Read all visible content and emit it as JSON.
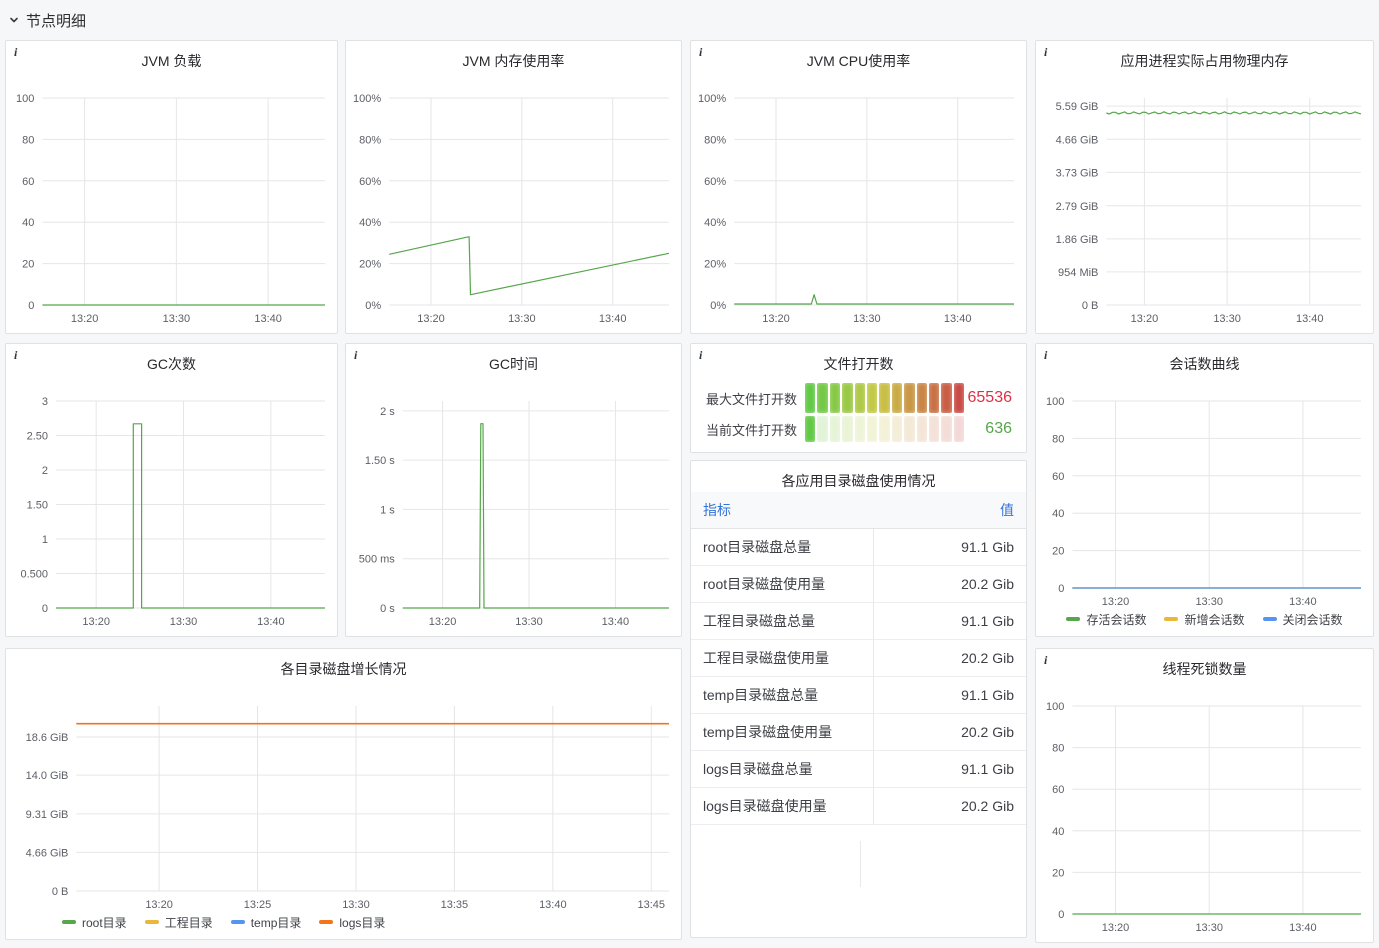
{
  "section": {
    "title": "节点明细"
  },
  "colors": {
    "green": "#56A64B",
    "yellow": "#EAB839",
    "blue": "#5794F2",
    "orange": "#F2751B",
    "red_value": "#E02F44",
    "green_value": "#56A64B",
    "link_blue": "#3274D9"
  },
  "panels": {
    "jvm_load": {
      "title": "JVM 负载",
      "chart_data": {
        "type": "line",
        "x_min": 15.4,
        "x_max": 46.2,
        "y_max": 100,
        "x_ticks": [
          {
            "v": 20,
            "label": "13:20"
          },
          {
            "v": 30,
            "label": "13:30"
          },
          {
            "v": 40,
            "label": "13:40"
          }
        ],
        "y_ticks": [
          {
            "v": 100,
            "label": "100"
          },
          {
            "v": 80,
            "label": "80"
          },
          {
            "v": 60,
            "label": "60"
          },
          {
            "v": 40,
            "label": "40"
          },
          {
            "v": 20,
            "label": "20"
          },
          {
            "v": 0,
            "label": "0"
          }
        ],
        "series": [
          {
            "color": "#56A64B",
            "points": [
              [
                15.4,
                0
              ],
              [
                46.2,
                0
              ]
            ]
          }
        ]
      }
    },
    "jvm_mem": {
      "title": "JVM 内存使用率",
      "chart_data": {
        "type": "line",
        "x_min": 15.4,
        "x_max": 46.2,
        "y_max": 100,
        "x_ticks": [
          {
            "v": 20,
            "label": "13:20"
          },
          {
            "v": 30,
            "label": "13:30"
          },
          {
            "v": 40,
            "label": "13:40"
          }
        ],
        "y_ticks": [
          {
            "v": 100,
            "label": "100%"
          },
          {
            "v": 80,
            "label": "80%"
          },
          {
            "v": 60,
            "label": "60%"
          },
          {
            "v": 40,
            "label": "40%"
          },
          {
            "v": 20,
            "label": "20%"
          },
          {
            "v": 0,
            "label": "0%"
          }
        ],
        "series": [
          {
            "color": "#56A64B",
            "points": [
              [
                15.4,
                24.5
              ],
              [
                24.2,
                33
              ],
              [
                24.35,
                5
              ],
              [
                46.2,
                25
              ]
            ]
          }
        ]
      }
    },
    "jvm_cpu": {
      "title": "JVM CPU使用率",
      "chart_data": {
        "type": "line",
        "x_min": 15.4,
        "x_max": 46.2,
        "y_max": 100,
        "x_ticks": [
          {
            "v": 20,
            "label": "13:20"
          },
          {
            "v": 30,
            "label": "13:30"
          },
          {
            "v": 40,
            "label": "13:40"
          }
        ],
        "y_ticks": [
          {
            "v": 100,
            "label": "100%"
          },
          {
            "v": 80,
            "label": "80%"
          },
          {
            "v": 60,
            "label": "60%"
          },
          {
            "v": 40,
            "label": "40%"
          },
          {
            "v": 20,
            "label": "20%"
          },
          {
            "v": 0,
            "label": "0%"
          }
        ],
        "series": [
          {
            "color": "#56A64B",
            "points": [
              [
                15.4,
                0.5
              ],
              [
                23.9,
                0.5
              ],
              [
                24.2,
                5
              ],
              [
                24.5,
                0.5
              ],
              [
                46.2,
                0.5
              ]
            ]
          }
        ]
      }
    },
    "phys_mem": {
      "title": "应用进程实际占用物理内存",
      "chart_data": {
        "type": "line",
        "x_min": 15.4,
        "x_max": 46.2,
        "y_max": 5.82,
        "x_ticks": [
          {
            "v": 20,
            "label": "13:20"
          },
          {
            "v": 30,
            "label": "13:30"
          },
          {
            "v": 40,
            "label": "13:40"
          }
        ],
        "y_ticks": [
          {
            "v": 5.59,
            "label": "5.59 GiB"
          },
          {
            "v": 4.66,
            "label": "4.66 GiB"
          },
          {
            "v": 3.73,
            "label": "3.73 GiB"
          },
          {
            "v": 2.79,
            "label": "2.79 GiB"
          },
          {
            "v": 1.86,
            "label": "1.86 GiB"
          },
          {
            "v": 0.931,
            "label": "954 MiB"
          },
          {
            "v": 0,
            "label": "0 B"
          }
        ],
        "series": [
          {
            "color": "#56A64B",
            "ripple": 1.1,
            "points": [
              [
                15.4,
                5.4
              ],
              [
                46.2,
                5.4
              ]
            ]
          }
        ]
      }
    },
    "gc_count": {
      "title": "GC次数",
      "chart_data": {
        "type": "line",
        "x_min": 15.4,
        "x_max": 46.2,
        "y_max": 3,
        "x_ticks": [
          {
            "v": 20,
            "label": "13:20"
          },
          {
            "v": 30,
            "label": "13:30"
          },
          {
            "v": 40,
            "label": "13:40"
          }
        ],
        "y_ticks": [
          {
            "v": 3,
            "label": "3"
          },
          {
            "v": 2.5,
            "label": "2.50"
          },
          {
            "v": 2,
            "label": "2"
          },
          {
            "v": 1.5,
            "label": "1.50"
          },
          {
            "v": 1,
            "label": "1"
          },
          {
            "v": 0.5,
            "label": "0.500"
          },
          {
            "v": 0,
            "label": "0"
          }
        ],
        "series": [
          {
            "color": "#56A64B",
            "points": [
              [
                15.4,
                0
              ],
              [
                24.25,
                0
              ],
              [
                24.25,
                2.67
              ],
              [
                25.2,
                2.67
              ],
              [
                25.2,
                0
              ],
              [
                46.2,
                0
              ]
            ]
          }
        ]
      }
    },
    "gc_time": {
      "title": "GC时间",
      "chart_data": {
        "type": "line",
        "x_min": 15.4,
        "x_max": 46.2,
        "y_max": 2.1,
        "x_ticks": [
          {
            "v": 20,
            "label": "13:20"
          },
          {
            "v": 30,
            "label": "13:30"
          },
          {
            "v": 40,
            "label": "13:40"
          }
        ],
        "y_ticks": [
          {
            "v": 2,
            "label": "2 s"
          },
          {
            "v": 1.5,
            "label": "1.50 s"
          },
          {
            "v": 1,
            "label": "1 s"
          },
          {
            "v": 0.5,
            "label": "500 ms"
          },
          {
            "v": 0,
            "label": "0 s"
          }
        ],
        "series": [
          {
            "color": "#56A64B",
            "points": [
              [
                15.4,
                0
              ],
              [
                24.3,
                0
              ],
              [
                24.42,
                1.87
              ],
              [
                24.68,
                1.87
              ],
              [
                24.8,
                0
              ],
              [
                46.2,
                0
              ]
            ]
          }
        ]
      }
    },
    "file_open": {
      "title": "文件打开数",
      "gauge": {
        "cells": 13,
        "rows": [
          {
            "label": "最大文件打开数",
            "value": "65536",
            "value_color": "#E02F44",
            "lit": 13
          },
          {
            "label": "当前文件打开数",
            "value": "636",
            "value_color": "#56A64B",
            "lit": 1
          }
        ]
      }
    },
    "sessions": {
      "title": "会话数曲线",
      "chart_data": {
        "type": "line",
        "x_min": 15.4,
        "x_max": 46.2,
        "y_max": 100,
        "x_ticks": [
          {
            "v": 20,
            "label": "13:20"
          },
          {
            "v": 30,
            "label": "13:30"
          },
          {
            "v": 40,
            "label": "13:40"
          }
        ],
        "y_ticks": [
          {
            "v": 100,
            "label": "100"
          },
          {
            "v": 80,
            "label": "80"
          },
          {
            "v": 60,
            "label": "60"
          },
          {
            "v": 40,
            "label": "40"
          },
          {
            "v": 20,
            "label": "20"
          },
          {
            "v": 0,
            "label": "0"
          }
        ],
        "series": [
          {
            "name": "存活会话数",
            "color": "#56A64B",
            "points": [
              [
                15.4,
                0
              ],
              [
                46.2,
                0
              ]
            ]
          },
          {
            "name": "新增会话数",
            "color": "#EAB839",
            "points": [
              [
                15.4,
                0
              ],
              [
                46.2,
                0
              ]
            ]
          },
          {
            "name": "关闭会话数",
            "color": "#5794F2",
            "points": [
              [
                15.4,
                0
              ],
              [
                46.2,
                0
              ]
            ]
          }
        ]
      }
    },
    "dir_table": {
      "title": "各应用目录磁盘使用情况",
      "columns": [
        "指标",
        "值"
      ],
      "rows": [
        [
          "root目录磁盘总量",
          "91.1 Gib"
        ],
        [
          "root目录磁盘使用量",
          "20.2 Gib"
        ],
        [
          "工程目录磁盘总量",
          "91.1 Gib"
        ],
        [
          "工程目录磁盘使用量",
          "20.2 Gib"
        ],
        [
          "temp目录磁盘总量",
          "91.1 Gib"
        ],
        [
          "temp目录磁盘使用量",
          "20.2 Gib"
        ],
        [
          "logs目录磁盘总量",
          "91.1 Gib"
        ],
        [
          "logs目录磁盘使用量",
          "20.2 Gib"
        ]
      ]
    },
    "disk_growth": {
      "title": "各目录磁盘增长情况",
      "chart_data": {
        "type": "line",
        "x_min": 15.8,
        "x_max": 45.9,
        "y_max": 22.34,
        "x_ticks": [
          {
            "v": 20,
            "label": "13:20"
          },
          {
            "v": 25,
            "label": "13:25"
          },
          {
            "v": 30,
            "label": "13:30"
          },
          {
            "v": 35,
            "label": "13:35"
          },
          {
            "v": 40,
            "label": "13:40"
          },
          {
            "v": 45,
            "label": "13:45"
          }
        ],
        "y_ticks": [
          {
            "v": 18.6,
            "label": "18.6 GiB"
          },
          {
            "v": 14.0,
            "label": "14.0 GiB"
          },
          {
            "v": 9.31,
            "label": "9.31 GiB"
          },
          {
            "v": 4.66,
            "label": "4.66 GiB"
          },
          {
            "v": 0,
            "label": "0 B"
          }
        ],
        "series": [
          {
            "name": "root目录",
            "color": "#56A64B",
            "points": [
              [
                15.8,
                20.2
              ],
              [
                45.9,
                20.2
              ]
            ]
          },
          {
            "name": "工程目录",
            "color": "#EAB839",
            "points": [
              [
                15.8,
                20.2
              ],
              [
                45.9,
                20.2
              ]
            ]
          },
          {
            "name": "temp目录",
            "color": "#5794F2",
            "points": [
              [
                15.8,
                20.2
              ],
              [
                45.9,
                20.2
              ]
            ]
          },
          {
            "name": "logs目录",
            "color": "#F2751B",
            "width": 1.6,
            "points": [
              [
                15.8,
                20.2
              ],
              [
                45.9,
                20.2
              ]
            ]
          }
        ]
      }
    },
    "deadlocks": {
      "title": "线程死锁数量",
      "chart_data": {
        "type": "line",
        "x_min": 15.4,
        "x_max": 46.2,
        "y_max": 100,
        "x_ticks": [
          {
            "v": 20,
            "label": "13:20"
          },
          {
            "v": 30,
            "label": "13:30"
          },
          {
            "v": 40,
            "label": "13:40"
          }
        ],
        "y_ticks": [
          {
            "v": 100,
            "label": "100"
          },
          {
            "v": 80,
            "label": "80"
          },
          {
            "v": 60,
            "label": "60"
          },
          {
            "v": 40,
            "label": "40"
          },
          {
            "v": 20,
            "label": "20"
          },
          {
            "v": 0,
            "label": "0"
          }
        ],
        "series": [
          {
            "color": "#56A64B",
            "points": [
              [
                15.4,
                0
              ],
              [
                46.2,
                0
              ]
            ]
          }
        ]
      }
    }
  }
}
